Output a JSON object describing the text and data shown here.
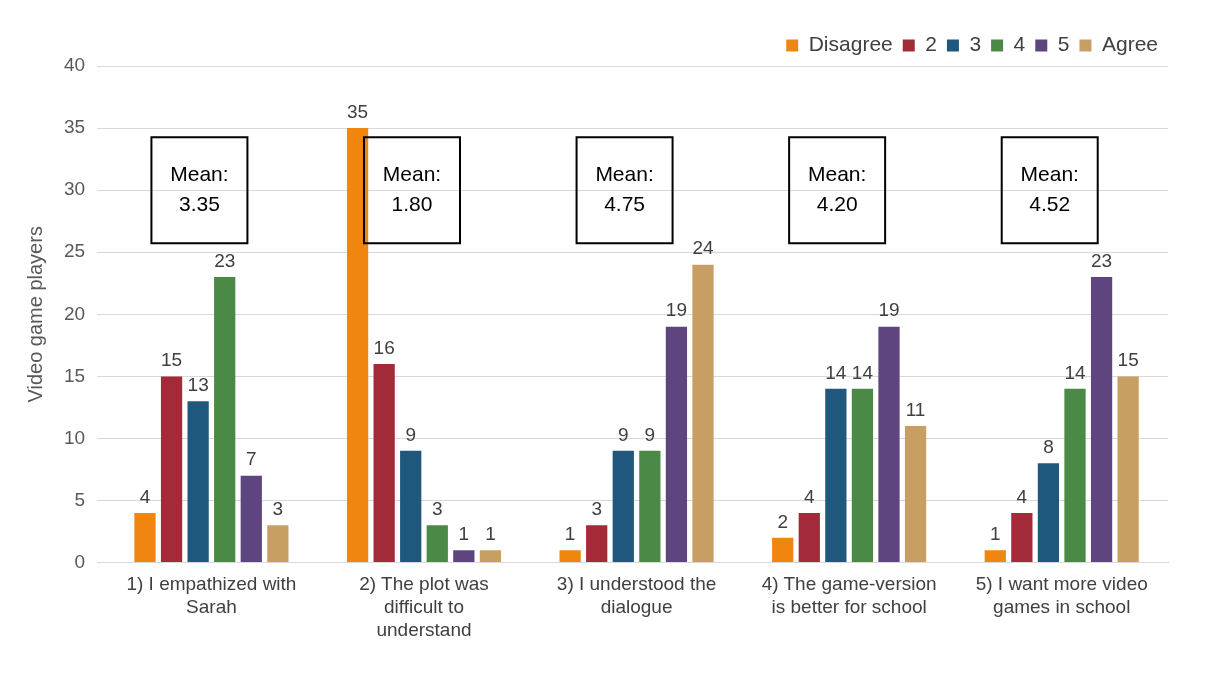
{
  "chart_data": {
    "type": "bar",
    "ylabel": "Video game players",
    "categories": [
      "1) I empathized with Sarah",
      "2) The plot was difficult to understand",
      "3) I understood the dialogue",
      "4) The game-version is better for school",
      "5) I want more video games in school"
    ],
    "series": [
      {
        "name": "Disagree",
        "color": "#f0850f",
        "values": [
          4,
          35,
          1,
          2,
          1
        ]
      },
      {
        "name": "2",
        "color": "#a32a38",
        "values": [
          15,
          16,
          3,
          4,
          4
        ]
      },
      {
        "name": "3",
        "color": "#1f587c",
        "values": [
          13,
          9,
          9,
          14,
          8
        ]
      },
      {
        "name": "4",
        "color": "#4b8a46",
        "values": [
          23,
          3,
          9,
          14,
          14
        ]
      },
      {
        "name": "5",
        "color": "#5e4580",
        "values": [
          7,
          1,
          19,
          19,
          23
        ]
      },
      {
        "name": "Agree",
        "color": "#c89f63",
        "values": [
          3,
          1,
          24,
          11,
          15
        ]
      }
    ],
    "ylim": [
      0,
      40
    ],
    "yticks": [
      0,
      5,
      10,
      15,
      20,
      25,
      30,
      35,
      40
    ],
    "grid": "y",
    "legend": "top right",
    "data_labels": true,
    "annotations": [
      "Mean: 3.35",
      "Mean: 1.80",
      "Mean: 4.75",
      "Mean: 4.20",
      "Mean: 4.52"
    ]
  }
}
